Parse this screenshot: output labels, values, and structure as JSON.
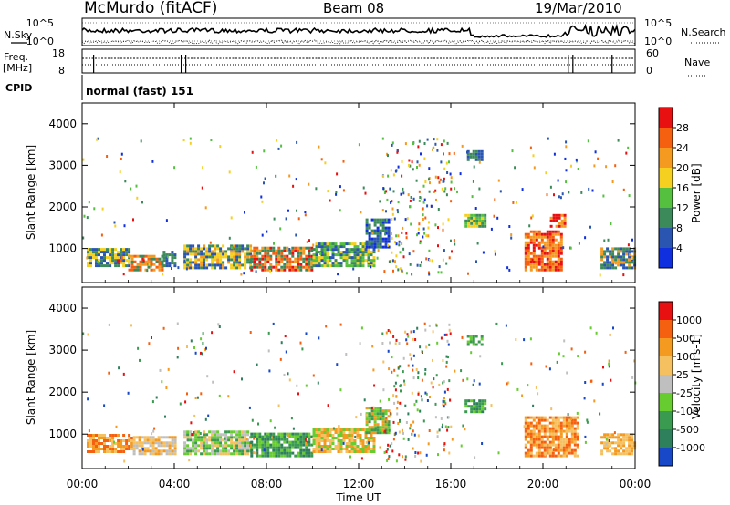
{
  "header": {
    "station": "McMurdo (fitACF)",
    "beam": "Beam 08",
    "date": "19/Mar/2010"
  },
  "top_panel": {
    "left_label": "N.Sky",
    "right_label": "N.Search",
    "tick_hi": "10^5",
    "tick_lo": "10^0"
  },
  "freq_panel": {
    "left_label_1": "Freq.",
    "left_label_2": "[MHz]",
    "left_tick_top": "18",
    "left_tick_bottom": "8",
    "right_label": "Nave",
    "right_tick_top": "60",
    "right_tick_bottom": "0"
  },
  "cpid": {
    "label": "CPID",
    "mode": "normal (fast) 151"
  },
  "chart_data": [
    {
      "type": "heatmap",
      "name": "power",
      "ylabel": "Slant Range [km]",
      "xlabel": "",
      "ylim": [
        180,
        4500
      ],
      "yticks": [
        1000,
        2000,
        3000,
        4000
      ],
      "xticks": [
        "00:00",
        "04:00",
        "08:00",
        "12:00",
        "16:00",
        "20:00",
        "00:00"
      ],
      "colorbar": {
        "label": "Power [dB]",
        "ticks": [
          "4",
          "8",
          "12",
          "16",
          "20",
          "24",
          "28"
        ],
        "colors": [
          "#1030e0",
          "#2a55b0",
          "#3c8a5a",
          "#55c040",
          "#f5d020",
          "#f59a20",
          "#f56010",
          "#e81010"
        ]
      },
      "regions": [
        {
          "t0": 0.2,
          "t1": 2.0,
          "r0": 550,
          "r1": 1000,
          "colors": [
            "#2a55b0",
            "#3c8a5a",
            "#f5d020"
          ]
        },
        {
          "t0": 2.0,
          "t1": 3.5,
          "r0": 450,
          "r1": 800,
          "colors": [
            "#f59a20",
            "#f56010",
            "#3c8a5a"
          ]
        },
        {
          "t0": 3.5,
          "t1": 4.0,
          "r0": 550,
          "r1": 900,
          "colors": [
            "#2a55b0",
            "#3c8a5a"
          ]
        },
        {
          "t0": 4.4,
          "t1": 7.3,
          "r0": 500,
          "r1": 1050,
          "colors": [
            "#3c8a5a",
            "#f5d020",
            "#f59a20",
            "#2a55b0"
          ]
        },
        {
          "t0": 7.3,
          "t1": 10.0,
          "r0": 450,
          "r1": 1000,
          "colors": [
            "#e81010",
            "#f56010",
            "#f59a20",
            "#3c8a5a"
          ]
        },
        {
          "t0": 10.0,
          "t1": 12.7,
          "r0": 550,
          "r1": 1100,
          "colors": [
            "#55c040",
            "#f5d020",
            "#3c8a5a",
            "#2a55b0"
          ]
        },
        {
          "t0": 12.3,
          "t1": 13.3,
          "r0": 1000,
          "r1": 1700,
          "colors": [
            "#2a55b0",
            "#1030e0",
            "#3c8a5a"
          ]
        },
        {
          "t0": 16.6,
          "t1": 17.5,
          "r0": 1500,
          "r1": 1800,
          "colors": [
            "#3c8a5a",
            "#f5d020",
            "#55c040"
          ]
        },
        {
          "t0": 16.7,
          "t1": 17.4,
          "r0": 3100,
          "r1": 3300,
          "colors": [
            "#3c8a5a",
            "#2a55b0"
          ]
        },
        {
          "t0": 19.2,
          "t1": 20.8,
          "r0": 450,
          "r1": 1400,
          "colors": [
            "#e81010",
            "#f56010",
            "#f59a20"
          ]
        },
        {
          "t0": 20.3,
          "t1": 21.0,
          "r0": 1500,
          "r1": 1800,
          "colors": [
            "#e81010",
            "#f59a20"
          ]
        },
        {
          "t0": 22.5,
          "t1": 24.0,
          "r0": 500,
          "r1": 1000,
          "colors": [
            "#2a55b0",
            "#3c8a5a",
            "#f59a20"
          ]
        }
      ]
    },
    {
      "type": "heatmap",
      "name": "velocity",
      "ylabel": "Slant Range [km]",
      "xlabel": "Time UT",
      "ylim": [
        180,
        4500
      ],
      "yticks": [
        1000,
        2000,
        3000,
        4000
      ],
      "xticks": [
        "00:00",
        "04:00",
        "08:00",
        "12:00",
        "16:00",
        "20:00",
        "00:00"
      ],
      "colorbar": {
        "label": "Velocity [m s-1]",
        "ticks": [
          "1000",
          "500",
          "100",
          "25",
          "-25",
          "-100",
          "-500",
          "-1000"
        ],
        "colors": [
          "#1848c8",
          "#2e7f5c",
          "#3a9a50",
          "#66cc30",
          "#bfbfbf",
          "#f5c060",
          "#f59a20",
          "#f56010",
          "#e81010"
        ]
      },
      "regions": [
        {
          "t0": 0.2,
          "t1": 2.2,
          "r0": 550,
          "r1": 1000,
          "colors": [
            "#f59a20",
            "#f56010",
            "#f5c060"
          ]
        },
        {
          "t0": 2.2,
          "t1": 4.0,
          "r0": 500,
          "r1": 900,
          "colors": [
            "#f59a20",
            "#bfbfbf",
            "#f5c060"
          ]
        },
        {
          "t0": 4.4,
          "t1": 7.3,
          "r0": 500,
          "r1": 1050,
          "colors": [
            "#66cc30",
            "#3a9a50",
            "#bfbfbf",
            "#f5c060"
          ]
        },
        {
          "t0": 7.3,
          "t1": 10.0,
          "r0": 450,
          "r1": 1000,
          "colors": [
            "#2e7f5c",
            "#3a9a50",
            "#66cc30"
          ]
        },
        {
          "t0": 10.0,
          "t1": 12.7,
          "r0": 550,
          "r1": 1100,
          "colors": [
            "#f59a20",
            "#f5c060",
            "#66cc30"
          ]
        },
        {
          "t0": 12.3,
          "t1": 13.3,
          "r0": 1000,
          "r1": 1600,
          "colors": [
            "#66cc30",
            "#3a9a50",
            "#f59a20"
          ]
        },
        {
          "t0": 16.6,
          "t1": 17.5,
          "r0": 1500,
          "r1": 1800,
          "colors": [
            "#3a9a50",
            "#2e7f5c",
            "#66cc30"
          ]
        },
        {
          "t0": 16.7,
          "t1": 17.4,
          "r0": 3100,
          "r1": 3300,
          "colors": [
            "#66cc30",
            "#3a9a50"
          ]
        },
        {
          "t0": 19.2,
          "t1": 21.5,
          "r0": 450,
          "r1": 1400,
          "colors": [
            "#f59a20",
            "#f56010",
            "#f5c060"
          ]
        },
        {
          "t0": 22.5,
          "t1": 24.0,
          "r0": 500,
          "r1": 1000,
          "colors": [
            "#f59a20",
            "#f5c060"
          ]
        }
      ]
    }
  ]
}
